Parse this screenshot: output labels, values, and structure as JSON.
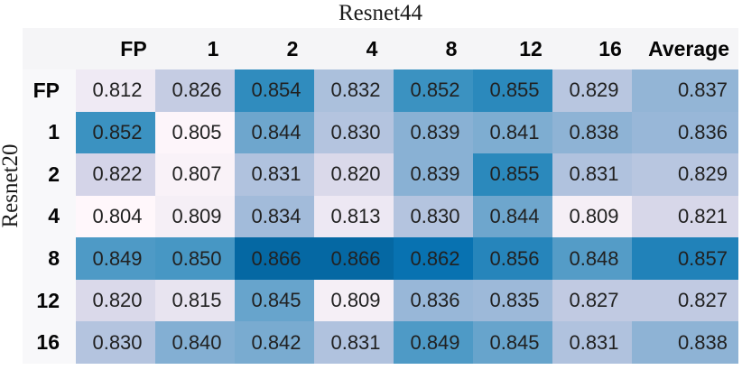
{
  "title": "Resnet44",
  "ylabel": "Resnet20",
  "chart_data": {
    "type": "heatmap",
    "title": "Resnet44",
    "ylabel": "Resnet20",
    "columns": [
      "FP",
      "1",
      "2",
      "4",
      "8",
      "12",
      "16",
      "Average"
    ],
    "rows": [
      "FP",
      "1",
      "2",
      "4",
      "8",
      "12",
      "16"
    ],
    "values": [
      [
        0.812,
        0.826,
        0.854,
        0.832,
        0.852,
        0.855,
        0.829,
        0.837
      ],
      [
        0.852,
        0.805,
        0.844,
        0.83,
        0.839,
        0.841,
        0.838,
        0.836
      ],
      [
        0.822,
        0.807,
        0.831,
        0.82,
        0.839,
        0.855,
        0.831,
        0.829
      ],
      [
        0.804,
        0.809,
        0.834,
        0.813,
        0.83,
        0.844,
        0.809,
        0.821
      ],
      [
        0.849,
        0.85,
        0.866,
        0.866,
        0.862,
        0.856,
        0.848,
        0.857
      ],
      [
        0.82,
        0.815,
        0.845,
        0.809,
        0.836,
        0.835,
        0.827,
        0.827
      ],
      [
        0.83,
        0.84,
        0.842,
        0.831,
        0.849,
        0.845,
        0.831,
        0.838
      ]
    ],
    "value_format": "3-decimals",
    "vmin": 0.804,
    "vmax": 0.882,
    "colormap": "PuBu",
    "legend": "none",
    "grid": false
  },
  "colors": {
    "background": "#ffffff",
    "header_bg": "#f5f5f7",
    "row_label_bg": "#f8f8fa",
    "cell_text": "#212121",
    "header_text": "#050505",
    "colormap_stops": [
      "#fff7fb",
      "#ece7f2",
      "#d0d1e6",
      "#a6bddb",
      "#74a9cf",
      "#3690c0",
      "#0570b0",
      "#045a8d",
      "#023858"
    ]
  }
}
